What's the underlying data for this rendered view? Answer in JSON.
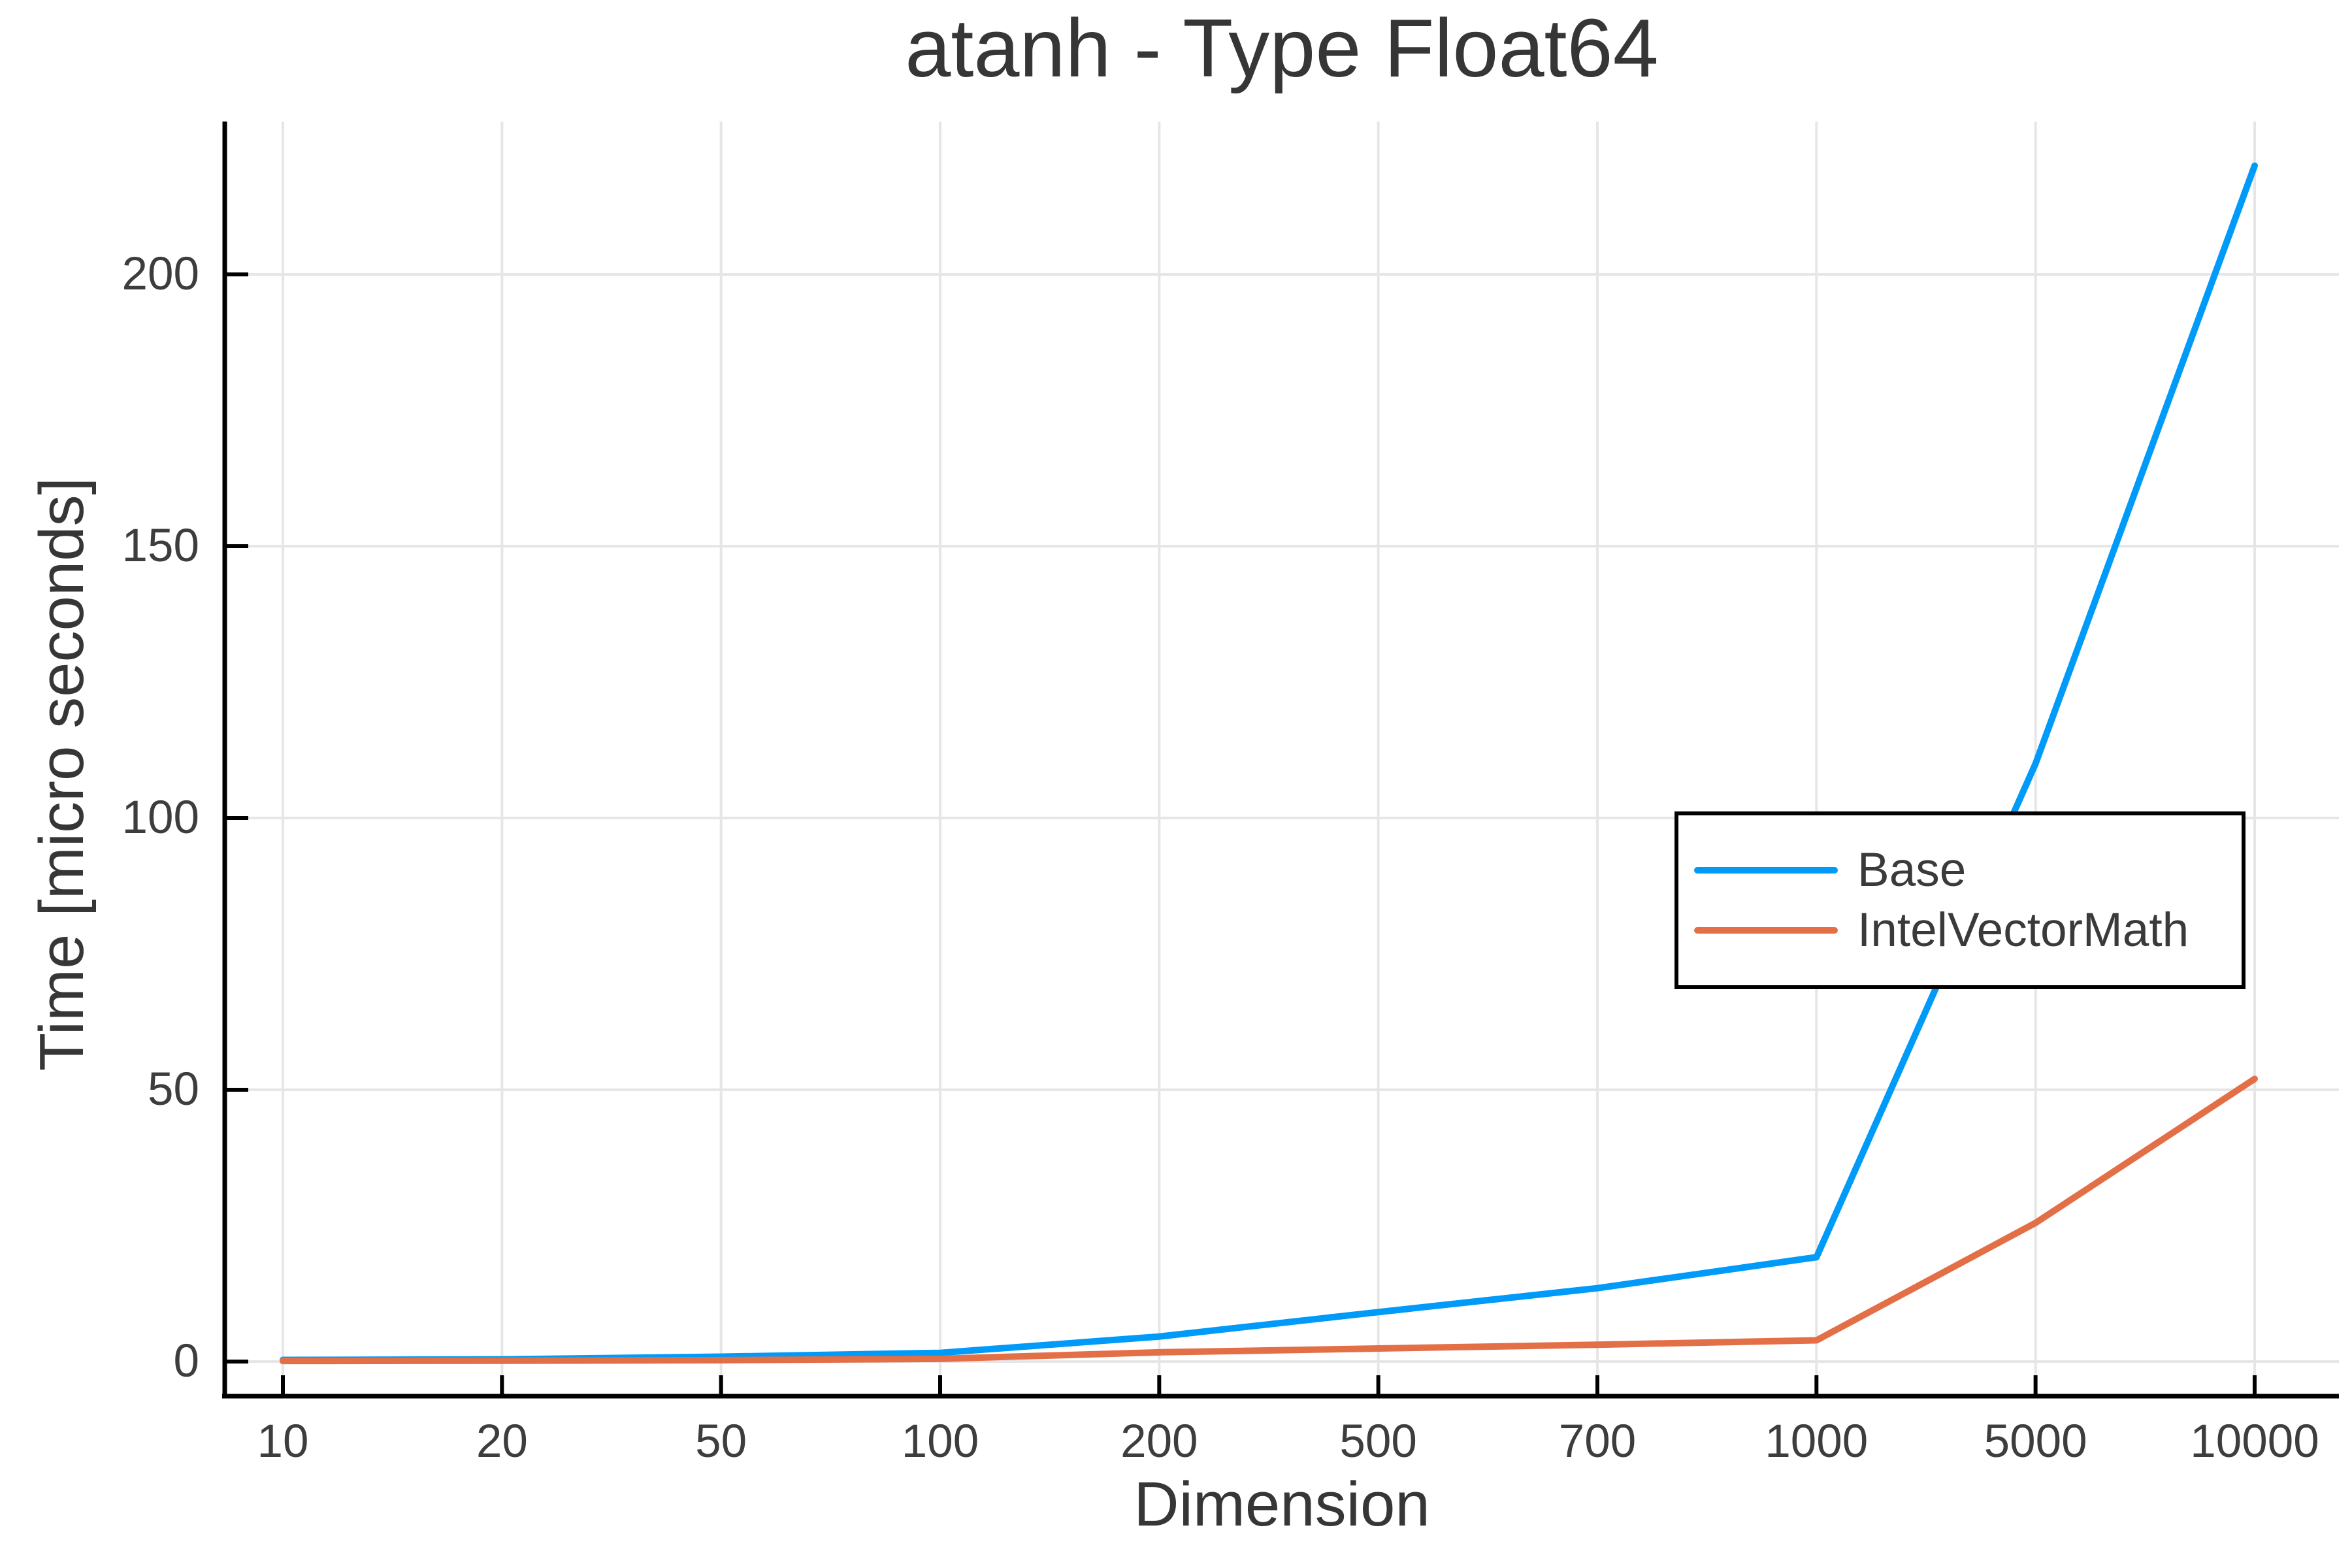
{
  "colors": {
    "background": "#FFFFFF",
    "text": "#363636",
    "tick_text": "#3D3D3D",
    "grid": "#E6E6E6",
    "axis": "#000000",
    "base_series": "#009AF9",
    "intelvectormath_series": "#E36F47"
  },
  "chart_data": {
    "type": "line",
    "title": "atanh - Type Float64",
    "xlabel": "Dimension",
    "ylabel": "Time [micro seconds]",
    "categories": [
      10,
      20,
      50,
      100,
      200,
      500,
      700,
      1000,
      5000,
      10000
    ],
    "x_tick_labels": [
      "10",
      "20",
      "50",
      "100",
      "200",
      "500",
      "700",
      "1000",
      "5000",
      "10000"
    ],
    "y_ticks": [
      0,
      50,
      100,
      150,
      200
    ],
    "ylim": [
      0,
      228
    ],
    "x_scale": "categorical-even-spacing",
    "grid": true,
    "legend_position": "inside-right",
    "series": [
      {
        "name": "Base",
        "color": "#009AF9",
        "values": [
          0.3,
          0.4,
          0.9,
          1.6,
          4.6,
          9.1,
          13.5,
          19.2,
          110,
          220
        ]
      },
      {
        "name": "IntelVectorMath",
        "color": "#E36F47",
        "values": [
          0.1,
          0.15,
          0.25,
          0.5,
          1.7,
          2.4,
          3.1,
          3.9,
          25.5,
          52
        ]
      }
    ]
  }
}
